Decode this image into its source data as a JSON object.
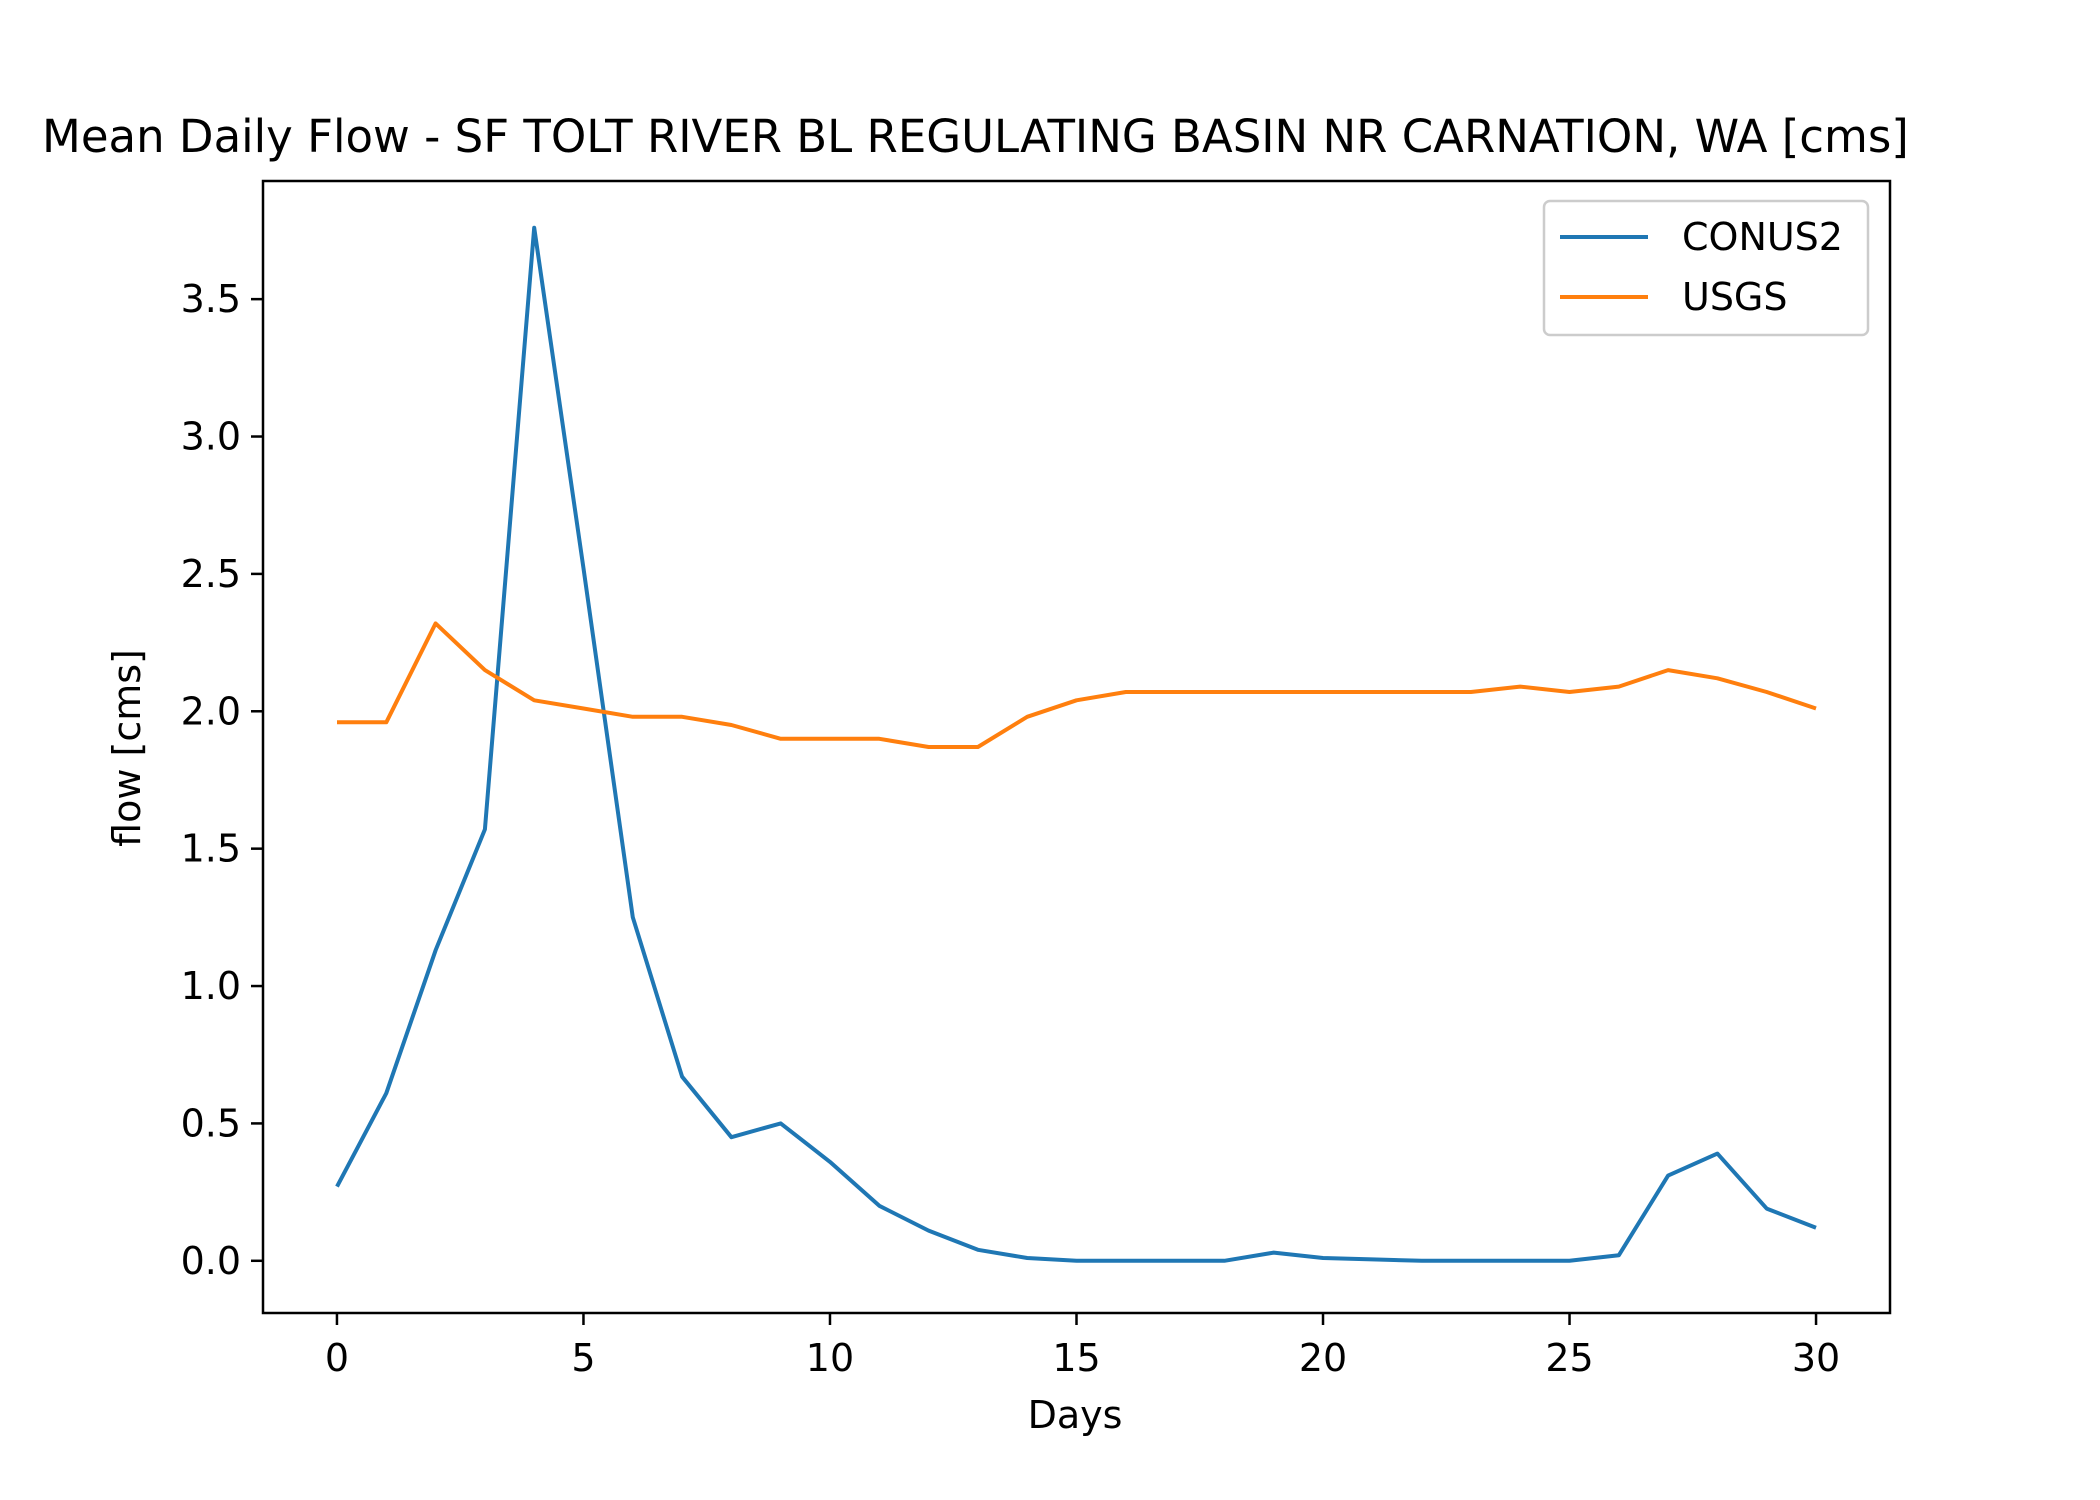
{
  "chart_data": {
    "type": "line",
    "title": "Mean Daily Flow - SF TOLT RIVER BL REGULATING BASIN NR CARNATION, WA [cms]",
    "xlabel": "Days",
    "ylabel": "flow [cms]",
    "xlim": [
      -1.5,
      31.5
    ],
    "ylim": [
      -0.19,
      3.93
    ],
    "xticks": [
      0,
      5,
      10,
      15,
      20,
      25,
      30
    ],
    "yticks": [
      0.0,
      0.5,
      1.0,
      1.5,
      2.0,
      2.5,
      3.0,
      3.5
    ],
    "xtick_labels": [
      "0",
      "5",
      "10",
      "15",
      "20",
      "25",
      "30"
    ],
    "ytick_labels": [
      "0.0",
      "0.5",
      "1.0",
      "1.5",
      "2.0",
      "2.5",
      "3.0",
      "3.5"
    ],
    "grid": false,
    "legend_position": "top-right",
    "x": [
      0,
      1,
      2,
      3,
      4,
      5,
      6,
      7,
      8,
      9,
      10,
      11,
      12,
      13,
      14,
      15,
      16,
      17,
      18,
      19,
      20,
      21,
      22,
      23,
      24,
      25,
      26,
      27,
      28,
      29,
      30
    ],
    "series": [
      {
        "name": "CONUS2",
        "color": "#1f77b4",
        "values": [
          0.27,
          0.61,
          1.13,
          1.57,
          3.76,
          2.52,
          1.25,
          0.67,
          0.45,
          0.5,
          0.36,
          0.2,
          0.11,
          0.04,
          0.01,
          0.0,
          0.0,
          0.0,
          0.0,
          0.03,
          0.01,
          0.005,
          0.0,
          0.0,
          0.0,
          0.0,
          0.02,
          0.31,
          0.39,
          0.19,
          0.12
        ]
      },
      {
        "name": "USGS",
        "color": "#ff7f0e",
        "values": [
          1.96,
          1.96,
          2.32,
          2.15,
          2.04,
          2.01,
          1.98,
          1.98,
          1.95,
          1.9,
          1.9,
          1.9,
          1.87,
          1.87,
          1.98,
          2.04,
          2.07,
          2.07,
          2.07,
          2.07,
          2.07,
          2.07,
          2.07,
          2.07,
          2.09,
          2.07,
          2.09,
          2.15,
          2.12,
          2.07,
          2.01
        ]
      }
    ]
  }
}
